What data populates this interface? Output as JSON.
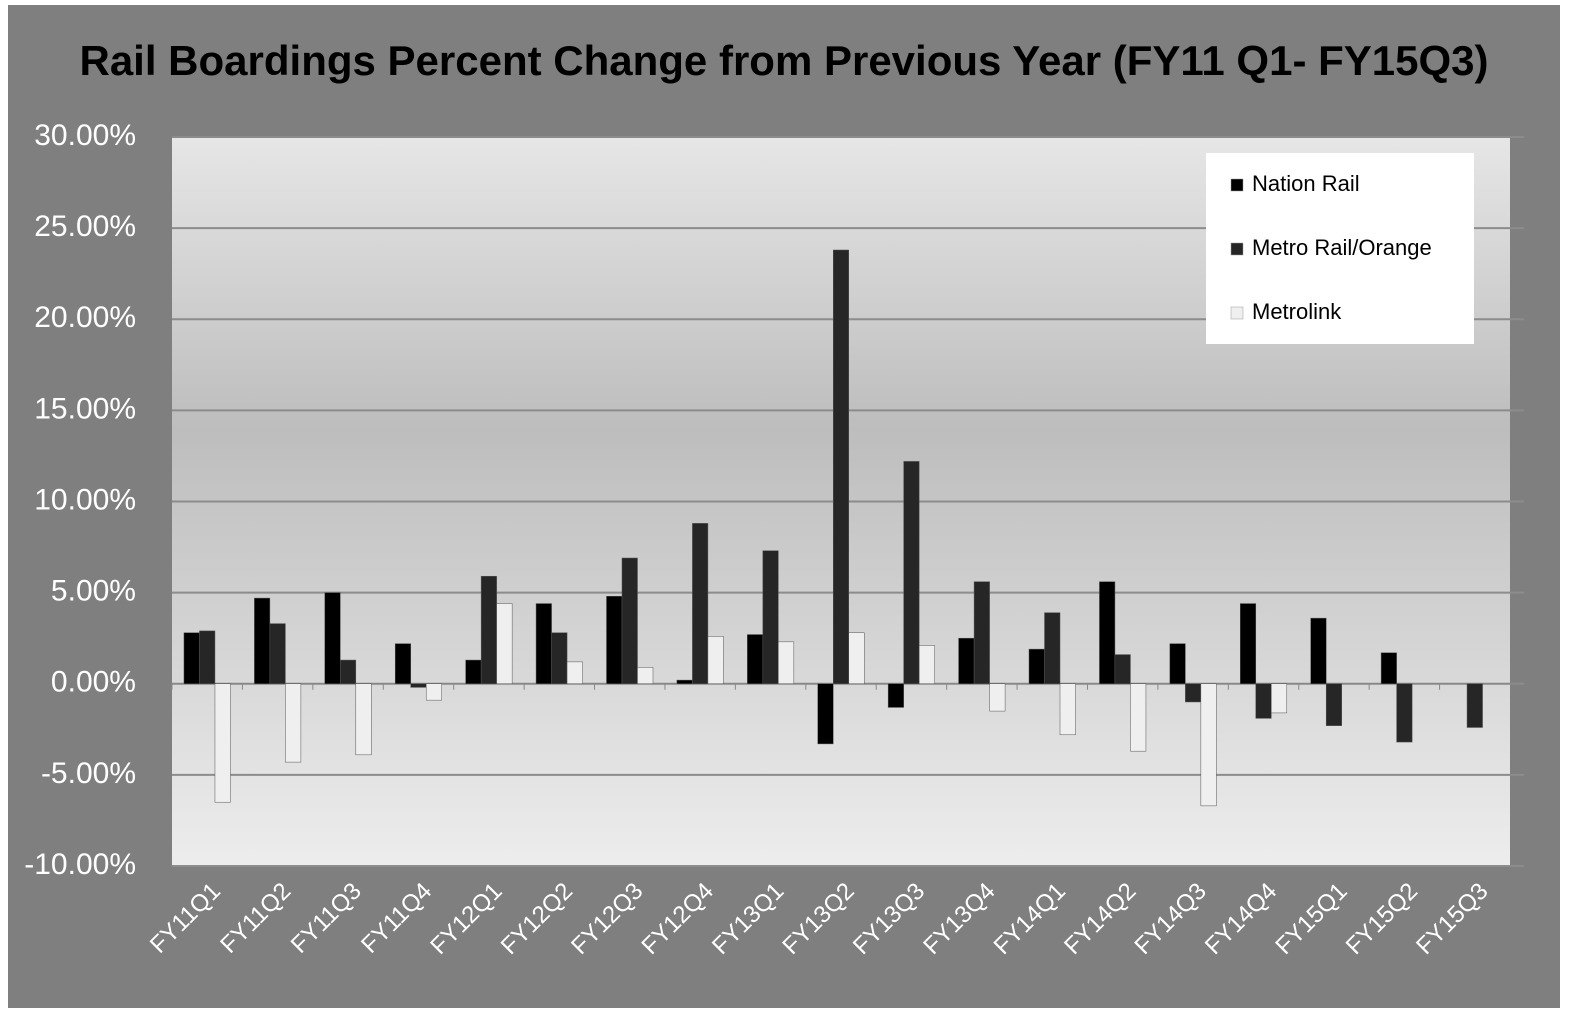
{
  "chart_data": {
    "type": "bar",
    "title": "Rail Boardings Percent Change from Previous Year (FY11 Q1- FY15Q3)",
    "categories": [
      "FY11Q1",
      "FY11Q2",
      "FY11Q3",
      "FY11Q4",
      "FY12Q1",
      "FY12Q2",
      "FY12Q3",
      "FY12Q4",
      "FY13Q1",
      "FY13Q2",
      "FY13Q3",
      "FY13Q4",
      "FY14Q1",
      "FY14Q2",
      "FY14Q3",
      "FY14Q4",
      "FY15Q1",
      "FY15Q2",
      "FY15Q3"
    ],
    "series": [
      {
        "name": "Nation Rail",
        "color": "#000000",
        "values": [
          2.8,
          4.7,
          5.0,
          2.2,
          1.3,
          4.4,
          4.8,
          0.2,
          2.7,
          -3.3,
          -1.3,
          2.5,
          1.9,
          5.6,
          2.2,
          4.4,
          3.6,
          1.7,
          null
        ]
      },
      {
        "name": "Metro Rail/Orange",
        "color": "#262626",
        "values": [
          2.9,
          3.3,
          1.3,
          -0.2,
          5.9,
          2.8,
          6.9,
          8.8,
          7.3,
          23.8,
          12.2,
          5.6,
          3.9,
          1.6,
          -1.0,
          -1.9,
          -2.3,
          -3.2,
          -2.4
        ]
      },
      {
        "name": "Metrolink",
        "color": "#efefef",
        "values": [
          -6.5,
          -4.3,
          -3.9,
          -0.9,
          4.4,
          1.2,
          0.9,
          2.6,
          2.3,
          2.8,
          2.1,
          -1.5,
          -2.8,
          -3.7,
          -6.7,
          -1.6,
          null,
          null,
          null
        ]
      }
    ],
    "ylim": [
      -10,
      30
    ],
    "yticks": [
      {
        "value": -10,
        "label": "-10.00%"
      },
      {
        "value": -5,
        "label": "-5.00%"
      },
      {
        "value": 0,
        "label": "0.00%"
      },
      {
        "value": 5,
        "label": "5.00%"
      },
      {
        "value": 10,
        "label": "10.00%"
      },
      {
        "value": 15,
        "label": "15.00%"
      },
      {
        "value": 20,
        "label": "20.00%"
      },
      {
        "value": 25,
        "label": "25.00%"
      },
      {
        "value": 30,
        "label": "30.00%"
      }
    ],
    "grid": true,
    "legend": "top-right"
  }
}
